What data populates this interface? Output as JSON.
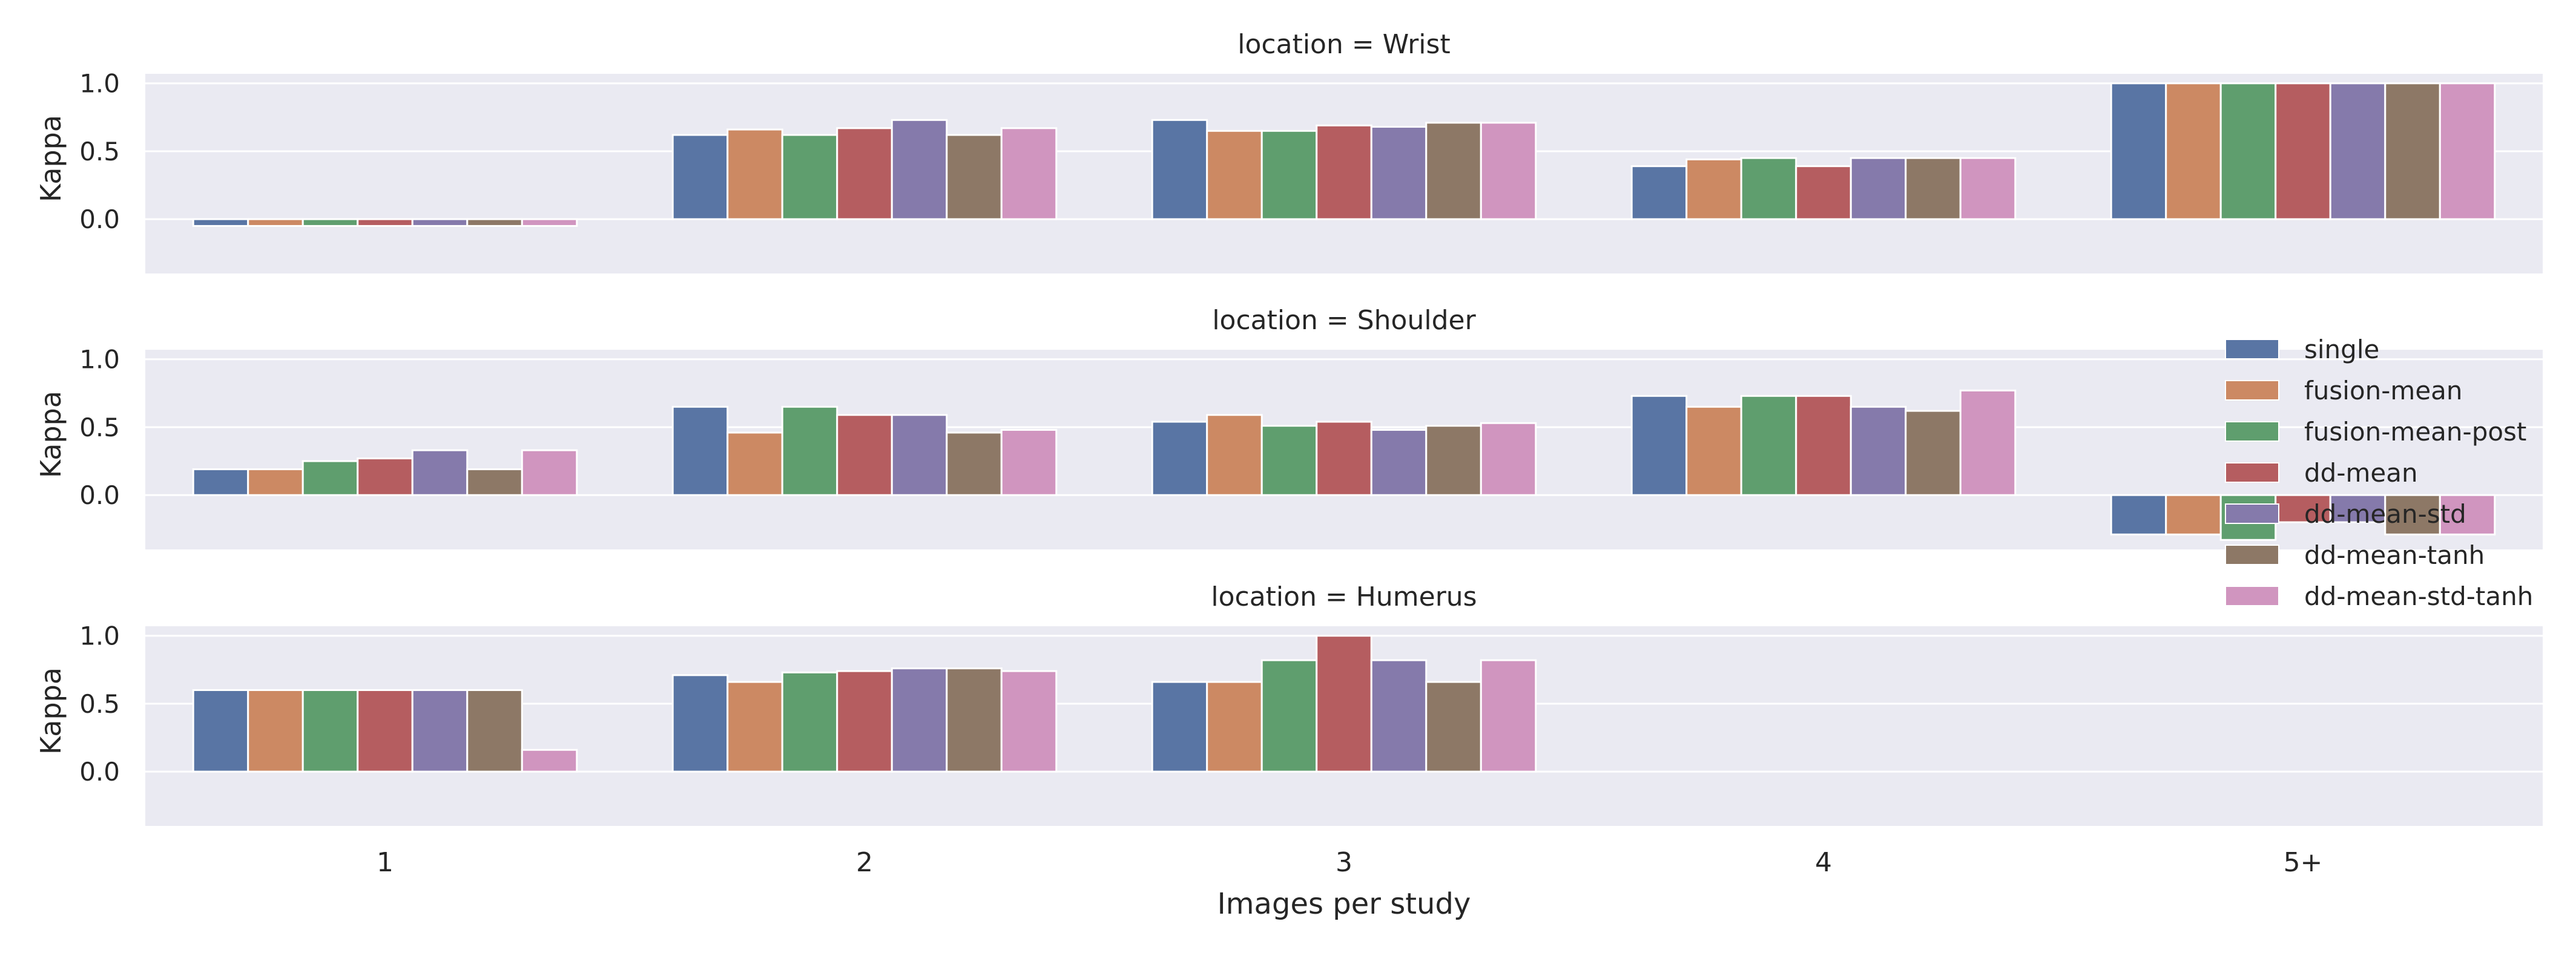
{
  "chart_data": {
    "type": "bar",
    "categories": [
      "1",
      "2",
      "3",
      "4",
      "5+"
    ],
    "xlabel": "Images per study",
    "ylabel": "Kappa",
    "ylim": [
      -0.4,
      1.07
    ],
    "yticks": [
      "1.0",
      "0.5",
      "0.0"
    ],
    "grid": true,
    "legend_position": "right",
    "legend": [
      {
        "name": "single",
        "color": "#5975a4"
      },
      {
        "name": "fusion-mean",
        "color": "#cc8963"
      },
      {
        "name": "fusion-mean-post",
        "color": "#5f9e6e"
      },
      {
        "name": "dd-mean",
        "color": "#b55d60"
      },
      {
        "name": "dd-mean-std",
        "color": "#857aab"
      },
      {
        "name": "dd-mean-tanh",
        "color": "#8d7866"
      },
      {
        "name": "dd-mean-std-tanh",
        "color": "#d095bf"
      }
    ],
    "panels": [
      {
        "title": "location = Wrist",
        "values": [
          [
            -0.05,
            -0.05,
            -0.05,
            -0.05,
            -0.05,
            -0.05,
            -0.05
          ],
          [
            0.62,
            0.66,
            0.62,
            0.67,
            0.73,
            0.62,
            0.67
          ],
          [
            0.73,
            0.65,
            0.65,
            0.69,
            0.68,
            0.71,
            0.71
          ],
          [
            0.39,
            0.44,
            0.45,
            0.39,
            0.45,
            0.45,
            0.45
          ],
          [
            1.0,
            1.0,
            1.0,
            1.0,
            1.0,
            1.0,
            1.0
          ]
        ]
      },
      {
        "title": "location = Shoulder",
        "values": [
          [
            0.19,
            0.19,
            0.25,
            0.27,
            0.33,
            0.19,
            0.33
          ],
          [
            0.65,
            0.46,
            0.65,
            0.59,
            0.59,
            0.46,
            0.48
          ],
          [
            0.54,
            0.59,
            0.51,
            0.54,
            0.48,
            0.51,
            0.53
          ],
          [
            0.73,
            0.65,
            0.73,
            0.73,
            0.65,
            0.62,
            0.77
          ],
          [
            -0.29,
            -0.29,
            -0.33,
            -0.2,
            -0.2,
            -0.29,
            -0.29
          ]
        ]
      },
      {
        "title": "location = Humerus",
        "values": [
          [
            0.6,
            0.6,
            0.6,
            0.6,
            0.6,
            0.6,
            0.16
          ],
          [
            0.71,
            0.66,
            0.73,
            0.74,
            0.76,
            0.76,
            0.74
          ],
          [
            0.66,
            0.66,
            0.82,
            1.0,
            0.82,
            0.66,
            0.82
          ],
          [
            null,
            null,
            null,
            null,
            null,
            null,
            null
          ],
          [
            null,
            null,
            null,
            null,
            null,
            null,
            null
          ]
        ]
      }
    ]
  }
}
